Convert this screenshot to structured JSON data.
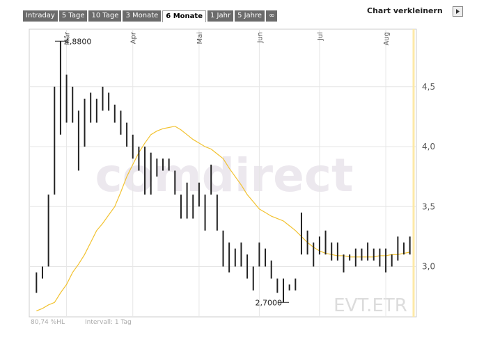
{
  "header": {
    "tabs": [
      "Intraday",
      "5 Tage",
      "10 Tage",
      "3 Monate",
      "6 Monate",
      "1 Jahr",
      "5 Jahre",
      "∞"
    ],
    "active_tab": 4,
    "shrink": "Chart verkleinern"
  },
  "chart_data": {
    "type": "hilo",
    "watermark": "comdirect",
    "symbol": "EVT.ETR",
    "footer_left": "80,74 %HL",
    "footer_right": "Intervall: 1 Tag",
    "categories": [
      null,
      null,
      null,
      null,
      null,
      "Mär",
      null,
      null,
      null,
      null,
      null,
      null,
      null,
      null,
      null,
      null,
      "Apr",
      null,
      null,
      null,
      null,
      null,
      null,
      null,
      null,
      null,
      null,
      "Mai",
      null,
      null,
      null,
      null,
      null,
      null,
      null,
      null,
      null,
      "Jun",
      null,
      null,
      null,
      null,
      null,
      null,
      null,
      null,
      null,
      "Jul",
      null,
      null,
      null,
      null,
      null,
      null,
      null,
      null,
      null,
      null,
      "Aug",
      null,
      null,
      null,
      null
    ],
    "high": [
      2.95,
      3.0,
      3.6,
      4.5,
      4.88,
      4.6,
      4.5,
      4.3,
      4.4,
      4.45,
      4.4,
      4.5,
      4.45,
      4.35,
      4.3,
      4.2,
      4.1,
      4.0,
      4.0,
      3.95,
      3.9,
      3.9,
      3.9,
      3.8,
      3.6,
      3.7,
      3.6,
      3.7,
      3.6,
      3.85,
      3.6,
      3.3,
      3.2,
      3.15,
      3.2,
      3.1,
      3.0,
      3.2,
      3.15,
      3.05,
      2.9,
      2.9,
      2.85,
      2.9,
      3.45,
      3.3,
      3.2,
      3.25,
      3.3,
      3.2,
      3.2,
      3.1,
      3.1,
      3.15,
      3.15,
      3.2,
      3.15,
      3.15,
      3.15,
      3.1,
      3.25,
      3.2,
      3.25
    ],
    "low": [
      2.78,
      2.9,
      3.0,
      3.6,
      4.1,
      4.2,
      4.2,
      3.8,
      4.0,
      4.2,
      4.2,
      4.3,
      4.3,
      4.2,
      4.1,
      4.0,
      3.9,
      3.8,
      3.6,
      3.6,
      3.75,
      3.8,
      3.8,
      3.6,
      3.4,
      3.4,
      3.4,
      3.5,
      3.3,
      3.6,
      3.3,
      3.0,
      2.95,
      3.0,
      3.0,
      2.9,
      2.8,
      3.0,
      3.0,
      2.9,
      2.78,
      2.7,
      2.8,
      2.8,
      3.1,
      3.1,
      3.0,
      3.1,
      3.1,
      3.05,
      3.05,
      2.95,
      3.05,
      3.0,
      3.05,
      3.05,
      3.05,
      3.0,
      2.95,
      3.0,
      3.05,
      3.1,
      3.1
    ],
    "line": {
      "color": "#f2c230",
      "values": [
        2.63,
        2.65,
        2.68,
        2.7,
        2.78,
        2.85,
        2.95,
        3.02,
        3.1,
        3.2,
        3.3,
        3.36,
        3.43,
        3.5,
        3.62,
        3.75,
        3.85,
        3.95,
        4.03,
        4.1,
        4.13,
        4.15,
        4.16,
        4.17,
        4.14,
        4.1,
        4.06,
        4.03,
        4.0,
        3.98,
        3.94,
        3.9,
        3.82,
        3.75,
        3.68,
        3.6,
        3.54,
        3.48,
        3.45,
        3.42,
        3.4,
        3.38,
        3.34,
        3.3,
        3.25,
        3.2,
        3.16,
        3.13,
        3.11,
        3.1,
        3.09,
        3.09,
        3.08,
        3.08,
        3.08,
        3.08,
        3.08,
        3.09,
        3.09,
        3.1,
        3.1,
        3.11,
        3.12
      ]
    },
    "bar_color": "#222222",
    "annotations": [
      {
        "label": "4,8800",
        "value": 4.88,
        "index": 4
      },
      {
        "label": "2,7000",
        "value": 2.7,
        "index": 41
      }
    ],
    "ylim": [
      2.58,
      4.98
    ],
    "yticks": [
      {
        "value": 3.0,
        "label": "3,0"
      },
      {
        "value": 3.5,
        "label": "3,5"
      },
      {
        "value": 4.0,
        "label": "4,0"
      },
      {
        "value": 4.5,
        "label": "4,5"
      }
    ],
    "grid": true
  }
}
